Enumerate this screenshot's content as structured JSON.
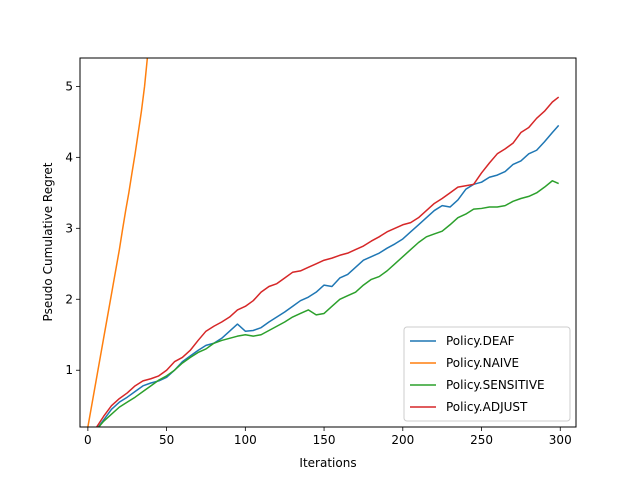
{
  "chart_data": {
    "type": "line",
    "title": "",
    "xlabel": "Iterations",
    "ylabel": "Pseudo Cumulative Regret",
    "xlim": [
      -5,
      310
    ],
    "ylim": [
      0.2,
      5.4
    ],
    "xticks": [
      0,
      50,
      100,
      150,
      200,
      250,
      300
    ],
    "yticks": [
      1,
      2,
      3,
      4,
      5
    ],
    "xtick_labels": [
      "0",
      "50",
      "100",
      "150",
      "200",
      "250",
      "300"
    ],
    "ytick_labels": [
      "1",
      "2",
      "3",
      "4",
      "5"
    ],
    "grid": false,
    "legend_position": "lower-right",
    "series": [
      {
        "name": "Policy.DEAF",
        "color": "#1f77b4",
        "x": [
          0,
          5,
          10,
          15,
          20,
          25,
          30,
          35,
          40,
          45,
          50,
          55,
          60,
          65,
          70,
          75,
          80,
          85,
          90,
          95,
          100,
          105,
          110,
          115,
          120,
          125,
          130,
          135,
          140,
          145,
          150,
          155,
          160,
          165,
          170,
          175,
          180,
          185,
          190,
          195,
          200,
          205,
          210,
          215,
          220,
          225,
          230,
          235,
          240,
          245,
          250,
          255,
          260,
          265,
          270,
          275,
          280,
          285,
          290,
          295,
          299
        ],
        "y": [
          0.1,
          0.15,
          0.3,
          0.45,
          0.55,
          0.62,
          0.7,
          0.78,
          0.82,
          0.85,
          0.9,
          1.0,
          1.12,
          1.2,
          1.28,
          1.35,
          1.38,
          1.45,
          1.55,
          1.65,
          1.55,
          1.56,
          1.6,
          1.68,
          1.75,
          1.82,
          1.9,
          1.98,
          2.03,
          2.1,
          2.2,
          2.18,
          2.3,
          2.35,
          2.45,
          2.55,
          2.6,
          2.65,
          2.72,
          2.78,
          2.85,
          2.95,
          3.05,
          3.15,
          3.25,
          3.32,
          3.3,
          3.4,
          3.55,
          3.62,
          3.65,
          3.72,
          3.75,
          3.8,
          3.9,
          3.95,
          4.05,
          4.1,
          4.22,
          4.35,
          4.45
        ]
      },
      {
        "name": "Policy.NAIVE",
        "color": "#ff7f0e",
        "x": [
          0,
          2,
          4,
          6,
          8,
          10,
          12,
          14,
          16,
          18,
          20,
          22,
          24,
          26,
          28,
          30,
          32,
          34,
          36,
          38
        ],
        "y": [
          0.2,
          0.45,
          0.7,
          0.95,
          1.2,
          1.45,
          1.7,
          1.95,
          2.2,
          2.45,
          2.7,
          2.98,
          3.25,
          3.5,
          3.78,
          4.05,
          4.35,
          4.65,
          5.0,
          5.45
        ]
      },
      {
        "name": "Policy.SENSITIVE",
        "color": "#2ca02c",
        "x": [
          0,
          5,
          10,
          15,
          20,
          25,
          30,
          35,
          40,
          45,
          50,
          55,
          60,
          65,
          70,
          75,
          80,
          85,
          90,
          95,
          100,
          105,
          110,
          115,
          120,
          125,
          130,
          135,
          140,
          145,
          150,
          155,
          160,
          165,
          170,
          175,
          180,
          185,
          190,
          195,
          200,
          205,
          210,
          215,
          220,
          225,
          230,
          235,
          240,
          245,
          250,
          255,
          260,
          265,
          270,
          275,
          280,
          285,
          290,
          295,
          299
        ],
        "y": [
          0.1,
          0.15,
          0.28,
          0.38,
          0.48,
          0.55,
          0.62,
          0.7,
          0.78,
          0.86,
          0.92,
          1.0,
          1.1,
          1.18,
          1.25,
          1.3,
          1.38,
          1.42,
          1.45,
          1.48,
          1.5,
          1.48,
          1.5,
          1.56,
          1.62,
          1.68,
          1.75,
          1.8,
          1.85,
          1.78,
          1.8,
          1.9,
          2.0,
          2.05,
          2.1,
          2.2,
          2.28,
          2.32,
          2.4,
          2.5,
          2.6,
          2.7,
          2.8,
          2.88,
          2.92,
          2.96,
          3.05,
          3.15,
          3.2,
          3.27,
          3.28,
          3.3,
          3.3,
          3.32,
          3.38,
          3.42,
          3.45,
          3.5,
          3.58,
          3.67,
          3.63
        ]
      },
      {
        "name": "Policy.ADJUST",
        "color": "#d62728",
        "x": [
          0,
          5,
          10,
          15,
          20,
          25,
          30,
          35,
          40,
          45,
          50,
          55,
          60,
          65,
          70,
          75,
          80,
          85,
          90,
          95,
          100,
          105,
          110,
          115,
          120,
          125,
          130,
          135,
          140,
          145,
          150,
          155,
          160,
          165,
          170,
          175,
          180,
          185,
          190,
          195,
          200,
          205,
          210,
          215,
          220,
          225,
          230,
          235,
          240,
          245,
          250,
          255,
          260,
          265,
          270,
          275,
          280,
          285,
          290,
          295,
          299
        ],
        "y": [
          0.1,
          0.18,
          0.35,
          0.5,
          0.6,
          0.68,
          0.78,
          0.85,
          0.88,
          0.92,
          1.0,
          1.12,
          1.18,
          1.28,
          1.42,
          1.55,
          1.62,
          1.68,
          1.75,
          1.85,
          1.9,
          1.98,
          2.1,
          2.18,
          2.22,
          2.3,
          2.38,
          2.4,
          2.45,
          2.5,
          2.55,
          2.58,
          2.62,
          2.65,
          2.7,
          2.75,
          2.82,
          2.88,
          2.95,
          3.0,
          3.05,
          3.08,
          3.15,
          3.25,
          3.35,
          3.42,
          3.5,
          3.58,
          3.6,
          3.62,
          3.78,
          3.92,
          4.05,
          4.12,
          4.2,
          4.35,
          4.42,
          4.55,
          4.65,
          4.78,
          4.85
        ]
      }
    ]
  }
}
